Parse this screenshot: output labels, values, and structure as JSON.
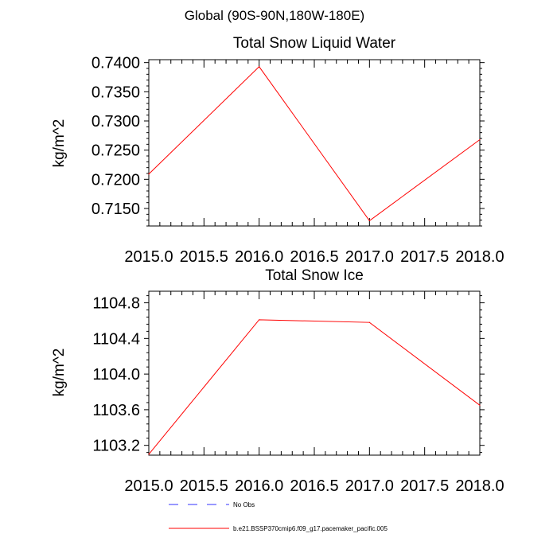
{
  "figure": {
    "suptitle": "Global (90S-90N,180W-180E)"
  },
  "chart_data": [
    {
      "type": "line",
      "title": "Total Snow Liquid Water",
      "xlabel": "",
      "ylabel": "kg/m^2",
      "xlim": [
        2015.0,
        2018.0
      ],
      "ylim": [
        0.712,
        0.7405
      ],
      "x_ticks": [
        "2015.0",
        "2015.5",
        "2016.0",
        "2016.5",
        "2017.0",
        "2017.5",
        "2018.0"
      ],
      "y_ticks": [
        "0.7150",
        "0.7200",
        "0.7250",
        "0.7300",
        "0.7350",
        "0.7400"
      ],
      "series": [
        {
          "name": "b.e21.BSSP370cmip6.f09_g17.pacemaker_pacific.005",
          "color": "#ff0000",
          "x": [
            2015.0,
            2016.0,
            2017.0,
            2018.0
          ],
          "y": [
            0.7209,
            0.7393,
            0.7129,
            0.7268
          ]
        }
      ]
    },
    {
      "type": "line",
      "title": "Total Snow Ice",
      "xlabel": "",
      "ylabel": "kg/m^2",
      "xlim": [
        2015.0,
        2018.0
      ],
      "ylim": [
        1103.09,
        1104.93
      ],
      "x_ticks": [
        "2015.0",
        "2015.5",
        "2016.0",
        "2016.5",
        "2017.0",
        "2017.5",
        "2018.0"
      ],
      "y_ticks": [
        "1103.2",
        "1103.6",
        "1104.0",
        "1104.4",
        "1104.8"
      ],
      "series": [
        {
          "name": "b.e21.BSSP370cmip6.f09_g17.pacemaker_pacific.005",
          "color": "#ff0000",
          "x": [
            2015.0,
            2016.0,
            2017.0,
            2018.0
          ],
          "y": [
            1103.1,
            1104.61,
            1104.58,
            1103.65
          ]
        }
      ]
    }
  ],
  "legend": [
    {
      "label": "No Obs",
      "color": "#3333ff",
      "dashed": true
    },
    {
      "label": "b.e21.BSSP370cmip6.f09_g17.pacemaker_pacific.005",
      "color": "#ff0000",
      "dashed": false
    }
  ]
}
